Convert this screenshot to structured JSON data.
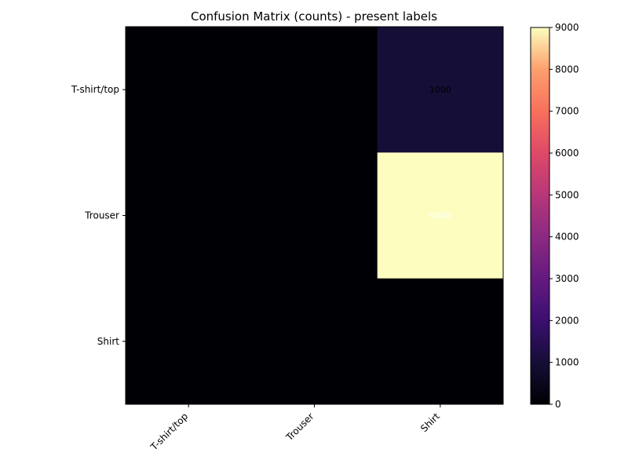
{
  "chart_data": {
    "type": "heatmap",
    "title": "Confusion Matrix (counts) - present labels",
    "xlabel": "",
    "ylabel": "",
    "x_categories": [
      "T-shirt/top",
      "Trouser",
      "Shirt"
    ],
    "y_categories": [
      "T-shirt/top",
      "Trouser",
      "Shirt"
    ],
    "values": [
      [
        0,
        0,
        1000
      ],
      [
        0,
        0,
        9000
      ],
      [
        0,
        0,
        0
      ]
    ],
    "cell_labels": [
      [
        "",
        "",
        "1000"
      ],
      [
        "",
        "",
        "9000"
      ],
      [
        "",
        "",
        ""
      ]
    ],
    "colormap": "magma",
    "colorbar": {
      "min": 0,
      "max": 9000,
      "ticks": [
        0,
        1000,
        2000,
        3000,
        4000,
        5000,
        6000,
        7000,
        8000,
        9000
      ]
    },
    "grid": false
  }
}
